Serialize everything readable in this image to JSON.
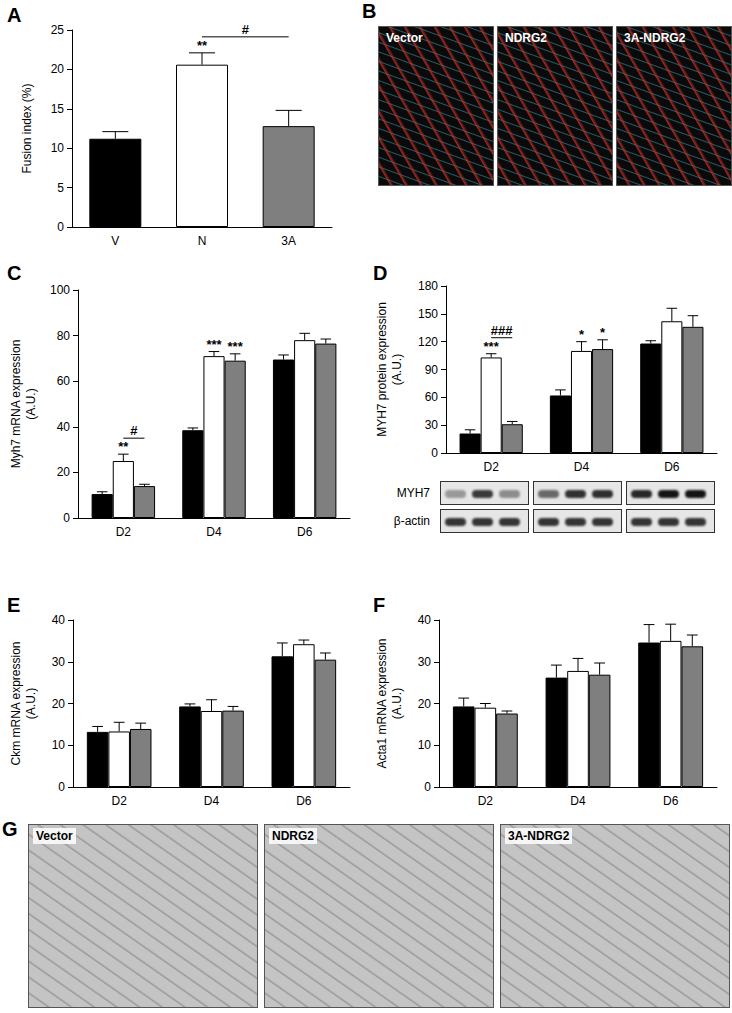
{
  "chart_data": [
    {
      "type": "bar",
      "title": "A",
      "ylabel": "Fusion index (%)",
      "categories": [
        "V",
        "N",
        "3A"
      ],
      "values": [
        11.2,
        20.6,
        12.8
      ],
      "errors": [
        0.9,
        1.5,
        2.0
      ],
      "colors": [
        "#000000",
        "#ffffff",
        "#7f7f7f"
      ],
      "ylim": [
        0,
        25
      ],
      "yticks": [
        0,
        5,
        10,
        15,
        20,
        25
      ],
      "grid": false,
      "annotations": [
        {
          "text": "**",
          "category": "N"
        },
        {
          "text": "#",
          "from": "N",
          "to": "3A"
        }
      ]
    },
    {
      "type": "bar",
      "title": "C",
      "ylabel": "Myh7 mRNA expression\n(A.U.)",
      "categories": [
        "D2",
        "D4",
        "D6"
      ],
      "series": [
        {
          "color": "#000000",
          "values": [
            10.5,
            38.5,
            69.5
          ],
          "errors": [
            1.0,
            1.0,
            2.0
          ]
        },
        {
          "color": "#ffffff",
          "values": [
            25.0,
            71.0,
            78.0
          ],
          "errors": [
            3.0,
            2.0,
            3.0
          ]
        },
        {
          "color": "#7f7f7f",
          "values": [
            14.0,
            69.0,
            76.5
          ],
          "errors": [
            0.8,
            3.0,
            2.0
          ]
        }
      ],
      "ylim": [
        0,
        100
      ],
      "yticks": [
        0,
        20,
        40,
        60,
        80,
        100
      ],
      "grid": false,
      "annotations": [
        {
          "text": "**",
          "category": "D2",
          "series": 1
        },
        {
          "text": "#",
          "category": "D2",
          "from": 1,
          "to": 2
        },
        {
          "text": "***",
          "category": "D4",
          "series": 1
        },
        {
          "text": "***",
          "category": "D4",
          "series": 2
        }
      ]
    },
    {
      "type": "bar",
      "title": "D",
      "ylabel": "MYH7 protein expression\n(A.U.)",
      "categories": [
        "D2",
        "D4",
        "D6"
      ],
      "series": [
        {
          "color": "#000000",
          "values": [
            21,
            62,
            118
          ],
          "errors": [
            4,
            6,
            3
          ]
        },
        {
          "color": "#ffffff",
          "values": [
            103,
            110,
            142
          ],
          "errors": [
            4,
            10,
            14
          ]
        },
        {
          "color": "#7f7f7f",
          "values": [
            31,
            112,
            136
          ],
          "errors": [
            3,
            10,
            12
          ]
        }
      ],
      "ylim": [
        0,
        180
      ],
      "yticks": [
        0,
        30,
        60,
        90,
        120,
        150,
        180
      ],
      "grid": false,
      "annotations": [
        {
          "text": "***",
          "category": "D2",
          "series": 1
        },
        {
          "text": "###",
          "category": "D2",
          "from": 1,
          "to": 2
        },
        {
          "text": "*",
          "category": "D4",
          "series": 1
        },
        {
          "text": "*",
          "category": "D4",
          "series": 2
        }
      ]
    },
    {
      "type": "bar",
      "title": "E",
      "ylabel": "Ckm mRNA expression\n(A.U.)",
      "categories": [
        "D2",
        "D4",
        "D6"
      ],
      "series": [
        {
          "color": "#000000",
          "values": [
            13.2,
            19.3,
            31.3
          ],
          "errors": [
            1.3,
            0.6,
            3.2
          ]
        },
        {
          "color": "#ffffff",
          "values": [
            13.3,
            18.2,
            34.2
          ],
          "errors": [
            2.2,
            2.7,
            1.0
          ]
        },
        {
          "color": "#7f7f7f",
          "values": [
            13.9,
            18.3,
            30.5
          ],
          "errors": [
            1.4,
            1.0,
            1.6
          ]
        }
      ],
      "ylim": [
        0,
        40
      ],
      "yticks": [
        0,
        10,
        20,
        30,
        40
      ],
      "grid": false
    },
    {
      "type": "bar",
      "title": "F",
      "ylabel": "Acta1 mRNA expression\n(A.U.)",
      "categories": [
        "D2",
        "D4",
        "D6"
      ],
      "series": [
        {
          "color": "#000000",
          "values": [
            19.3,
            26.2,
            34.6
          ],
          "errors": [
            2.0,
            3.0,
            4.3
          ]
        },
        {
          "color": "#ffffff",
          "values": [
            19.0,
            27.8,
            35.0
          ],
          "errors": [
            1.0,
            3.0,
            4.0
          ]
        },
        {
          "color": "#7f7f7f",
          "values": [
            17.6,
            26.9,
            33.7
          ],
          "errors": [
            0.6,
            2.8,
            2.7
          ]
        }
      ],
      "ylim": [
        0,
        40
      ],
      "yticks": [
        0,
        10,
        20,
        30,
        40
      ],
      "grid": false
    }
  ],
  "micrographs": [
    {
      "title": "B",
      "labels": [
        "Vector",
        "NDRG2",
        "3A-NDRG2"
      ],
      "color": "#0a0a0a"
    },
    {
      "title": "G",
      "labels": [
        "Vector",
        "NDRG2",
        "3A-NDRG2"
      ],
      "color": "#c4c4c4"
    }
  ],
  "blot": {
    "chart": "D",
    "rows": [
      "MYH7",
      "β-actin"
    ]
  }
}
